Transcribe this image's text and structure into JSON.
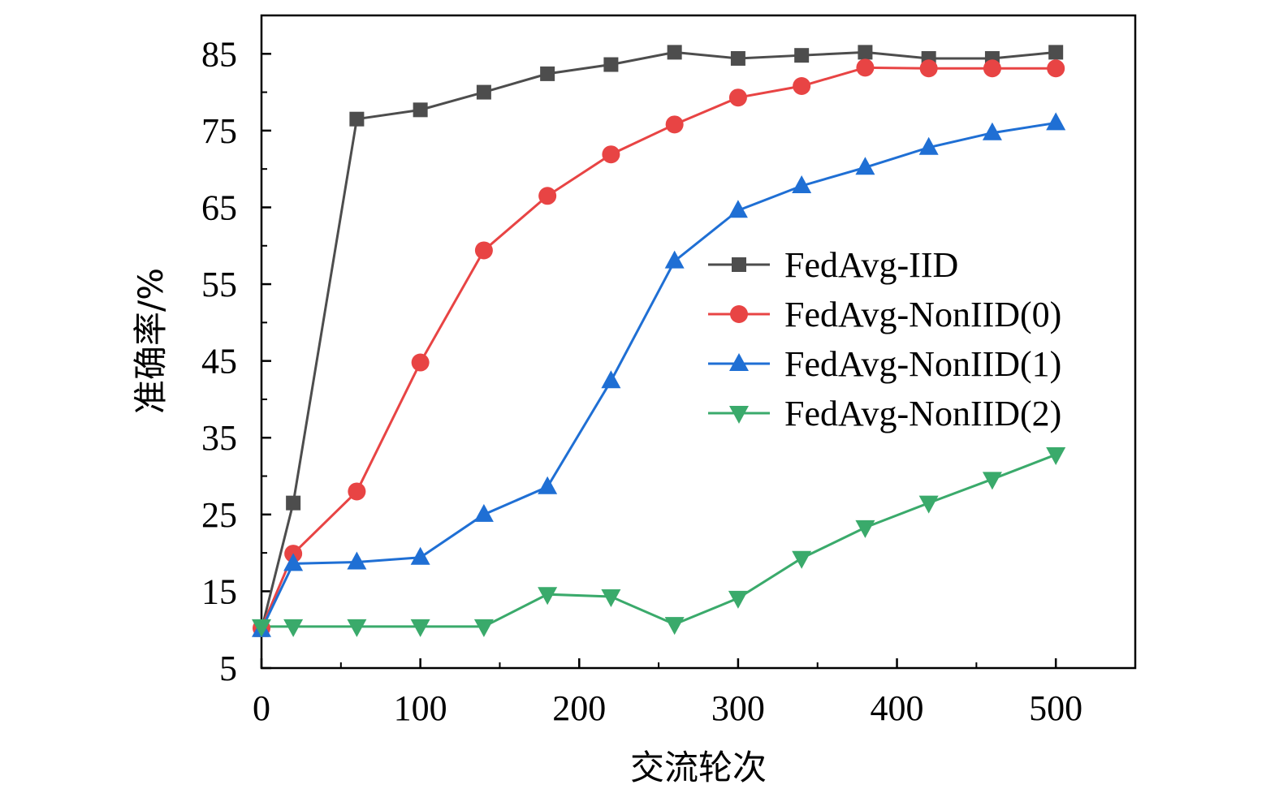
{
  "chart_data": {
    "type": "line",
    "title": "",
    "xlabel": "交流轮次",
    "ylabel": "准确率/%",
    "xlim": [
      0,
      550
    ],
    "ylim": [
      5,
      90
    ],
    "x_ticks": [
      0,
      100,
      200,
      300,
      400,
      500
    ],
    "y_ticks": [
      5,
      15,
      25,
      35,
      45,
      55,
      65,
      75,
      85
    ],
    "grid": false,
    "legend_position": "center-right",
    "x": [
      0,
      20,
      60,
      100,
      140,
      180,
      220,
      260,
      300,
      340,
      380,
      420,
      460,
      500
    ],
    "series": [
      {
        "name": "FedAvg-IID",
        "color": "#4d4d4d",
        "marker": "square",
        "values": [
          10.0,
          26.5,
          76.5,
          77.7,
          80.0,
          82.4,
          83.6,
          85.2,
          84.4,
          84.8,
          85.2,
          84.4,
          84.4,
          85.2
        ]
      },
      {
        "name": "FedAvg-NonIID(0)",
        "color": "#e84444",
        "marker": "circle",
        "values": [
          10.2,
          19.9,
          28.0,
          44.8,
          59.4,
          66.5,
          71.9,
          75.8,
          79.3,
          80.8,
          83.2,
          83.1,
          83.1,
          83.1
        ]
      },
      {
        "name": "FedAvg-NonIID(1)",
        "color": "#1f6fd4",
        "marker": "triangle-up",
        "values": [
          10.0,
          18.6,
          18.8,
          19.4,
          25.0,
          28.6,
          42.4,
          58.0,
          64.6,
          67.8,
          70.2,
          72.8,
          74.7,
          76.0
        ]
      },
      {
        "name": "FedAvg-NonIID(2)",
        "color": "#3aaa6b",
        "marker": "triangle-down",
        "values": [
          10.4,
          10.4,
          10.4,
          10.4,
          10.4,
          14.6,
          14.3,
          10.7,
          14.1,
          19.3,
          23.3,
          26.5,
          29.6,
          32.8
        ]
      }
    ]
  }
}
